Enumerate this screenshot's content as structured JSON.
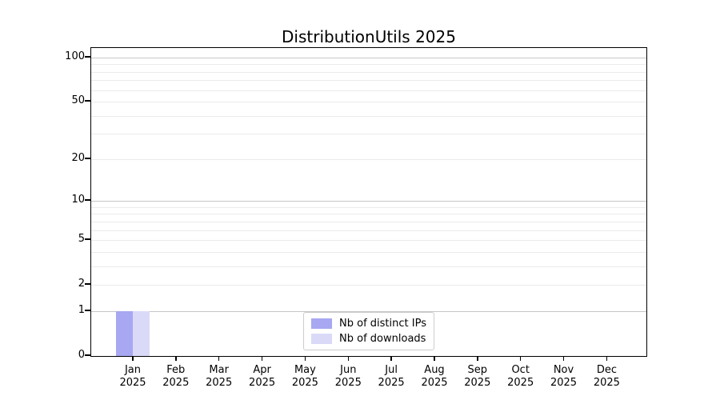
{
  "title": "DistributionUtils 2025",
  "chart_data": {
    "type": "bar",
    "title": "DistributionUtils 2025",
    "x_categories": [
      {
        "month": "Jan",
        "year": "2025"
      },
      {
        "month": "Feb",
        "year": "2025"
      },
      {
        "month": "Mar",
        "year": "2025"
      },
      {
        "month": "Apr",
        "year": "2025"
      },
      {
        "month": "May",
        "year": "2025"
      },
      {
        "month": "Jun",
        "year": "2025"
      },
      {
        "month": "Jul",
        "year": "2025"
      },
      {
        "month": "Aug",
        "year": "2025"
      },
      {
        "month": "Sep",
        "year": "2025"
      },
      {
        "month": "Oct",
        "year": "2025"
      },
      {
        "month": "Nov",
        "year": "2025"
      },
      {
        "month": "Dec",
        "year": "2025"
      }
    ],
    "series": [
      {
        "name": "Nb of distinct IPs",
        "color": "#a7a7f2",
        "values": [
          1,
          0,
          0,
          0,
          0,
          0,
          0,
          0,
          0,
          0,
          0,
          0
        ]
      },
      {
        "name": "Nb of downloads",
        "color": "#dadaf8",
        "values": [
          1,
          0,
          0,
          0,
          0,
          0,
          0,
          0,
          0,
          0,
          0,
          0
        ]
      }
    ],
    "y_axis": {
      "scale": "log10(1+y)",
      "range": [
        0,
        116
      ],
      "ticks": [
        {
          "value": 0,
          "label": "0"
        },
        {
          "value": 1,
          "label": "1"
        },
        {
          "value": 2,
          "label": "2"
        },
        {
          "value": 5,
          "label": "5"
        },
        {
          "value": 10,
          "label": "10"
        },
        {
          "value": 20,
          "label": "20"
        },
        {
          "value": 50,
          "label": "50"
        },
        {
          "value": 100,
          "label": "100"
        }
      ],
      "major_gridlines": [
        1,
        10,
        100
      ],
      "minor_gridlines": [
        2,
        3,
        4,
        5,
        6,
        7,
        8,
        9,
        20,
        30,
        40,
        50,
        60,
        70,
        80,
        90
      ]
    },
    "grid": true,
    "legend_position": "lower center"
  },
  "colors": {
    "spine": "#000000",
    "major_grid": "#c6c6c6",
    "minor_grid": "#ebebeb",
    "legend_border": "#cccccc",
    "background": "#ffffff",
    "text": "#000000"
  }
}
